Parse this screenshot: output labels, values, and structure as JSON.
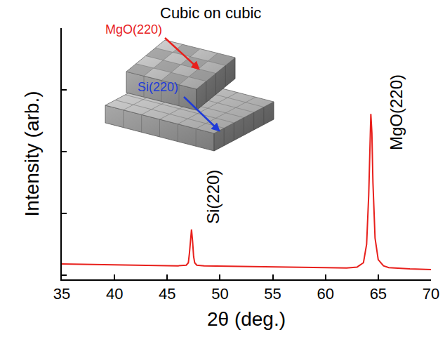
{
  "chart_data": {
    "type": "line",
    "x": [
      35,
      37,
      39,
      41,
      43,
      45,
      46,
      46.8,
      47.0,
      47.1,
      47.2,
      47.3,
      47.4,
      47.5,
      47.6,
      47.8,
      48.5,
      50,
      52,
      54,
      56,
      58,
      60,
      62,
      63,
      63.6,
      63.9,
      64.1,
      64.2,
      64.3,
      64.4,
      64.5,
      64.7,
      65.0,
      65.5,
      66,
      68,
      70
    ],
    "values": [
      0.18,
      0.175,
      0.17,
      0.165,
      0.16,
      0.155,
      0.15,
      0.16,
      0.2,
      0.35,
      0.6,
      0.74,
      0.55,
      0.3,
      0.2,
      0.16,
      0.15,
      0.145,
      0.14,
      0.135,
      0.13,
      0.125,
      0.12,
      0.115,
      0.13,
      0.2,
      0.5,
      1.3,
      2.0,
      2.61,
      2.3,
      1.5,
      0.6,
      0.25,
      0.15,
      0.12,
      0.1,
      0.09
    ],
    "color": "#e8201c",
    "xlabel": "2θ (deg.)",
    "ylabel": "Intensity (arb.)",
    "xlim": [
      35,
      70
    ],
    "xticks": [
      35,
      40,
      45,
      50,
      55,
      60,
      65,
      70
    ],
    "ylim": [
      -0.07,
      4
    ],
    "yticks": [
      0,
      1,
      2,
      3,
      4
    ],
    "grid": false,
    "tick_labels": "x",
    "annotations": [
      {
        "text": "Si(220)",
        "x": 49.3,
        "y": 1.27
      },
      {
        "text": "MgO(220)",
        "x": 66.7,
        "y": 2.64
      }
    ]
  },
  "inset": {
    "title": "Cubic on cubic",
    "labels": [
      {
        "text": "MgO(220)",
        "color": "#e8201c"
      },
      {
        "text": "Si(220)",
        "color": "#1f3bd8"
      }
    ]
  }
}
